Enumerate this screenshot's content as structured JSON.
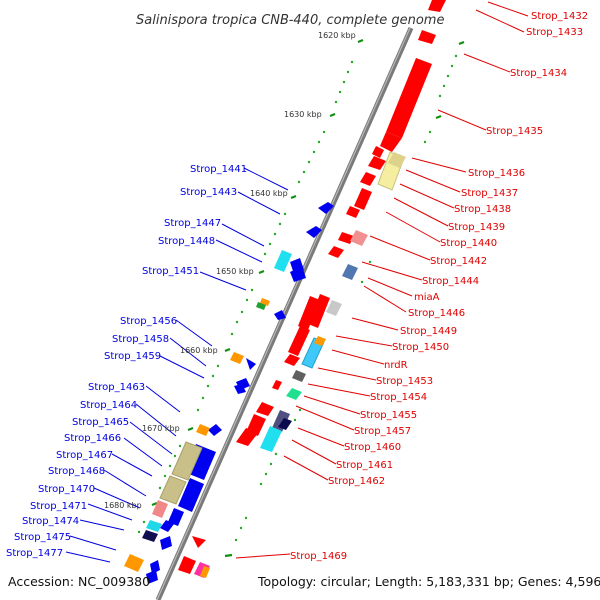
{
  "title": "Salinispora tropica CNB-440, complete genome",
  "footer": {
    "accession": "Accession: NC_009380",
    "summary": "Topology: circular; Length: 5,183,331 bp; Genes: 4,596"
  },
  "ticks": [
    "1620 kbp",
    "1630 kbp",
    "1640 kbp",
    "1650 kbp",
    "1660 kbp",
    "1670 kbp",
    "1680 kbp"
  ],
  "forward_labels": [
    "Strop_1432",
    "Strop_1433",
    "Strop_1434",
    "Strop_1435",
    "Strop_1436",
    "Strop_1437",
    "Strop_1438",
    "Strop_1439",
    "Strop_1440",
    "Strop_1442",
    "Strop_1444",
    "miaA",
    "Strop_1446",
    "Strop_1449",
    "Strop_1450",
    "nrdR",
    "Strop_1453",
    "Strop_1454",
    "Strop_1455",
    "Strop_1457",
    "Strop_1460",
    "Strop_1461",
    "Strop_1462",
    "Strop_1469"
  ],
  "reverse_labels": [
    "Strop_1441",
    "Strop_1443",
    "Strop_1447",
    "Strop_1448",
    "Strop_1451",
    "Strop_1456",
    "Strop_1458",
    "Strop_1459",
    "Strop_1463",
    "Strop_1464",
    "Strop_1465",
    "Strop_1466",
    "Strop_1467",
    "Strop_1468",
    "Strop_1470",
    "Strop_1471",
    "Strop_1474",
    "Strop_1475",
    "Strop_1477"
  ],
  "colors": {
    "forward": "#ff0000",
    "reverse": "#0000ff",
    "forward_label": "#e00000",
    "reverse_label": "#0000e0",
    "backbone": "#888888",
    "gc_dots": "#22aa22"
  }
}
